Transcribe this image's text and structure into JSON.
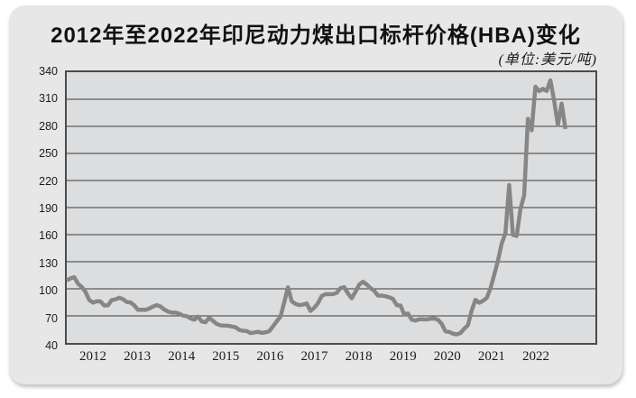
{
  "card": {
    "title": "2012年至2022年印尼动力煤出口标杆价格(HBA)变化",
    "unit_label": "(单位:美元/吨)"
  },
  "colors": {
    "card_background": "#e6e7e6",
    "plot_background": "#dcddde",
    "plot_border": "#4b4c4e",
    "gridline": "#3c3c3c",
    "line": "#868686",
    "text": "#1c1c1c"
  },
  "chart_data": {
    "type": "line",
    "title": "2012年至2022年印尼动力煤出口标杆价格(HBA)变化",
    "unit": "美元/吨",
    "ylim": [
      40,
      340
    ],
    "ytick_step": 30,
    "yticks": [
      40,
      70,
      100,
      130,
      160,
      190,
      220,
      250,
      280,
      310,
      340
    ],
    "x_tick_labels": [
      "2012",
      "2013",
      "2014",
      "2015",
      "2016",
      "2017",
      "2018",
      "2019",
      "2020",
      "2021",
      "2022"
    ],
    "x_axis_months_range": [
      0,
      141
    ],
    "grid": "horizontal",
    "legend": "none",
    "series": [
      {
        "name": "HBA",
        "color": "#868686",
        "start": "2012-01",
        "years": [
          {
            "year": "2012",
            "values": [
              109.29,
              111.58,
              112.87,
              105.61,
              102.12,
              96.65,
              87.56,
              84.65,
              86.21,
              86.04,
              81.44,
              81.75
            ]
          },
          {
            "year": "2013",
            "values": [
              87.55,
              88.35,
              90.09,
              88.56,
              85.33,
              84.87,
              81.69,
              76.7,
              76.89,
              76.61,
              78.13,
              80.31
            ]
          },
          {
            "year": "2014",
            "values": [
              81.9,
              80.44,
              77.01,
              74.81,
              73.6,
              73.64,
              72.45,
              70.29,
              69.69,
              67.26,
              65.7,
              69.23
            ]
          },
          {
            "year": "2015",
            "values": [
              63.84,
              62.92,
              67.76,
              64.48,
              61.08,
              59.59,
              59.16,
              59.14,
              58.21,
              57.39,
              54.43,
              53.51
            ]
          },
          {
            "year": "2016",
            "values": [
              53.2,
              50.92,
              51.62,
              52.32,
              51.2,
              51.81,
              53.0,
              58.37,
              63.93,
              69.07,
              84.89,
              101.69
            ]
          },
          {
            "year": "2017",
            "values": [
              86.23,
              83.32,
              81.9,
              82.51,
              83.81,
              75.46,
              78.95,
              83.97,
              92.03,
              93.99,
              94.04,
              94.04
            ]
          },
          {
            "year": "2018",
            "values": [
              95.54,
              100.69,
              101.86,
              94.75,
              89.53,
              96.61,
              104.65,
              107.83,
              104.81,
              100.89,
              97.9,
              92.51
            ]
          },
          {
            "year": "2019",
            "values": [
              92.41,
              91.8,
              90.57,
              88.85,
              81.86,
              81.48,
              71.92,
              72.67,
              65.79,
              64.8,
              66.27,
              66.3
            ]
          },
          {
            "year": "2020",
            "values": [
              65.93,
              66.89,
              67.08,
              65.77,
              61.11,
              52.98,
              52.16,
              50.34,
              49.42,
              51.0,
              55.71,
              59.65
            ]
          },
          {
            "year": "2021",
            "values": [
              75.84,
              87.79,
              84.47,
              86.68,
              89.74,
              100.33,
              115.35,
              130.99,
              150.03,
              161.63,
              215.01,
              159.79
            ]
          },
          {
            "year": "2022",
            "values": [
              158.5,
              188.38,
              203.69,
              288.4,
              275.64,
              323.91,
              319.0,
              321.59,
              319.22,
              330.97,
              308.2,
              281.48
            ]
          },
          {
            "year": "2023",
            "values": [
              305.21,
              277.05
            ]
          }
        ]
      }
    ]
  }
}
